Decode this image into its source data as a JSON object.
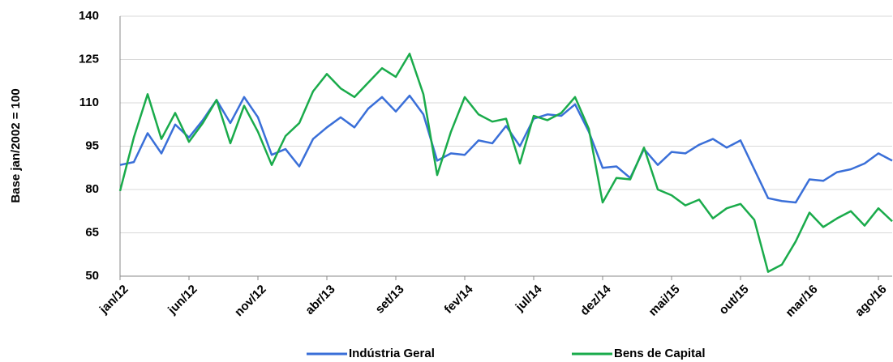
{
  "chart_data": {
    "type": "line",
    "y_label": "Base jan/2002 = 100",
    "categories": [
      "jan/12",
      null,
      null,
      null,
      null,
      "jun/12",
      null,
      null,
      null,
      null,
      "nov/12",
      null,
      null,
      null,
      null,
      "abr/13",
      null,
      null,
      null,
      null,
      "set/13",
      null,
      null,
      null,
      null,
      "fev/14",
      null,
      null,
      null,
      null,
      "jul/14",
      null,
      null,
      null,
      null,
      "dez/14",
      null,
      null,
      null,
      null,
      "mai/15",
      null,
      null,
      null,
      null,
      "out/15",
      null,
      null,
      null,
      null,
      "mar/16",
      null,
      null,
      null,
      null,
      "ago/16",
      null
    ],
    "series": [
      {
        "name": "Indústria Geral",
        "color": "#3a6fd8",
        "values": [
          88.5,
          89.5,
          99.5,
          92.5,
          102.5,
          98,
          104,
          111,
          103,
          112,
          105,
          92,
          94,
          88,
          97.5,
          101.5,
          105,
          101.5,
          108,
          112,
          107,
          112.5,
          106,
          90,
          92.5,
          92,
          97,
          96,
          102,
          95,
          104.5,
          106,
          105.5,
          109.5,
          100,
          87.5,
          88,
          84,
          94,
          88.5,
          93,
          92.5,
          95.5,
          97.5,
          94.5,
          97,
          87,
          77,
          76,
          75.5,
          83.5,
          83,
          86,
          87,
          89,
          92.5,
          90
        ]
      },
      {
        "name": "Bens de Capital",
        "color": "#1aab4b",
        "values": [
          79.5,
          98,
          113,
          97.5,
          106.5,
          96.5,
          103,
          111,
          96,
          109,
          100,
          88.5,
          98.5,
          103,
          114,
          120,
          115,
          112,
          117,
          122,
          119,
          127,
          113,
          85,
          100,
          112,
          106,
          103.5,
          104.5,
          89,
          105.5,
          104,
          106.5,
          112,
          101,
          75.5,
          84,
          83.5,
          94.5,
          80,
          78,
          74.5,
          76.5,
          70,
          73.5,
          75,
          69.5,
          51.5,
          54,
          62,
          72,
          67,
          70,
          72.5,
          67.5,
          73.5,
          69
        ]
      }
    ],
    "ylim": [
      50,
      140
    ],
    "yticks": [
      50,
      65,
      80,
      95,
      110,
      125,
      140
    ],
    "grid": true,
    "legend": "bottom"
  }
}
